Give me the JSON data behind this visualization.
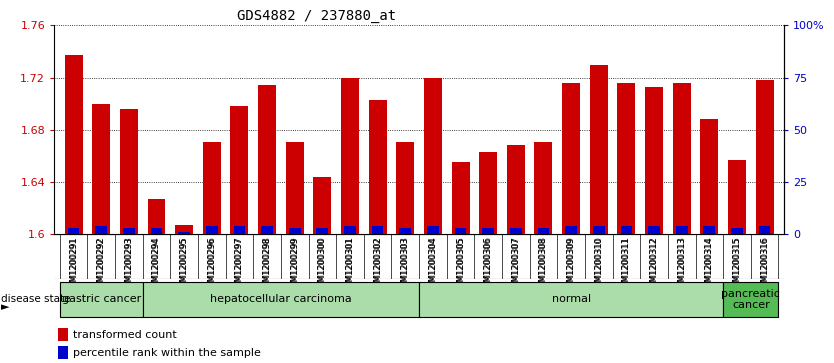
{
  "title": "GDS4882 / 237880_at",
  "samples": [
    "GSM1200291",
    "GSM1200292",
    "GSM1200293",
    "GSM1200294",
    "GSM1200295",
    "GSM1200296",
    "GSM1200297",
    "GSM1200298",
    "GSM1200299",
    "GSM1200300",
    "GSM1200301",
    "GSM1200302",
    "GSM1200303",
    "GSM1200304",
    "GSM1200305",
    "GSM1200306",
    "GSM1200307",
    "GSM1200308",
    "GSM1200309",
    "GSM1200310",
    "GSM1200311",
    "GSM1200312",
    "GSM1200313",
    "GSM1200314",
    "GSM1200315",
    "GSM1200316"
  ],
  "red_values": [
    1.737,
    1.7,
    1.696,
    1.627,
    1.607,
    1.671,
    1.698,
    1.714,
    1.671,
    1.644,
    1.72,
    1.703,
    1.671,
    1.72,
    1.655,
    1.663,
    1.668,
    1.671,
    1.716,
    1.73,
    1.716,
    1.713,
    1.716,
    1.688,
    1.657,
    1.718
  ],
  "blue_percentiles": [
    3,
    4,
    3,
    3,
    1,
    4,
    4,
    4,
    3,
    3,
    4,
    4,
    3,
    4,
    3,
    3,
    3,
    3,
    4,
    4,
    4,
    4,
    4,
    4,
    3,
    4
  ],
  "ylim_left": [
    1.6,
    1.76
  ],
  "ylim_right": [
    0,
    100
  ],
  "yticks_left": [
    1.6,
    1.64,
    1.68,
    1.72,
    1.76
  ],
  "yticks_right": [
    0,
    25,
    50,
    75,
    100
  ],
  "ytick_labels_right": [
    "0",
    "25",
    "50",
    "75",
    "100%"
  ],
  "disease_groups": [
    {
      "label": "gastric cancer",
      "start": 0,
      "end": 3,
      "color": "#aaddaa"
    },
    {
      "label": "hepatocellular carcinoma",
      "start": 3,
      "end": 13,
      "color": "#aaddaa"
    },
    {
      "label": "normal",
      "start": 13,
      "end": 24,
      "color": "#aaddaa"
    },
    {
      "label": "pancreatic\ncancer",
      "start": 24,
      "end": 26,
      "color": "#55bb55"
    }
  ],
  "bar_color_red": "#cc0000",
  "bar_color_blue": "#0000cc",
  "bar_width": 0.65,
  "background_color": "#ffffff",
  "plot_bg_color": "#ffffff",
  "tick_label_color_left": "#cc0000",
  "tick_label_color_right": "#0000cc",
  "title_fontsize": 10,
  "axis_tick_fontsize": 8,
  "sample_fontsize": 6,
  "legend_fontsize": 8,
  "disease_fontsize": 8,
  "xtick_bg_color": "#d8d8d8"
}
